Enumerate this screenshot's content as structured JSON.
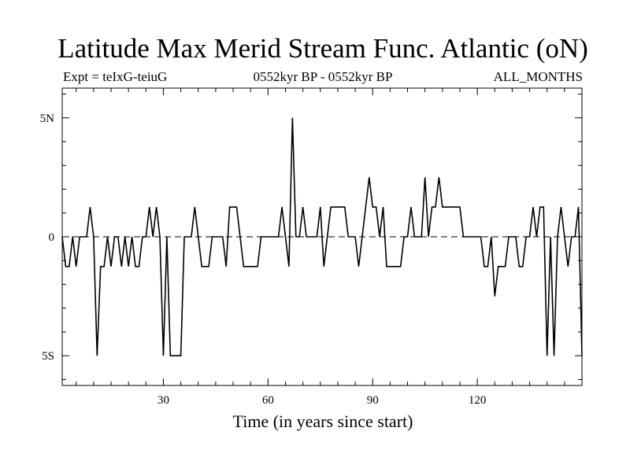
{
  "chart_data": {
    "type": "line",
    "title": "Latitude Max Merid Stream Func. Atlantic (oN)",
    "subtitle_left": "Expt = teIxG-teiuG",
    "subtitle_center": "0552kyr BP - 0552kyr BP",
    "subtitle_right": "ALL_MONTHS",
    "xlabel": "Time (in years since start)",
    "ylabel": "",
    "xlim": [
      1,
      150
    ],
    "ylim": [
      -6.25,
      6.25
    ],
    "x_ticks": [
      30,
      60,
      90,
      120
    ],
    "y_ticks": [
      -5,
      0,
      5
    ],
    "y_tick_labels": [
      "5S",
      "0",
      "5N"
    ],
    "zero_line": "dashed",
    "grid": false,
    "x": [
      1,
      2,
      3,
      4,
      5,
      6,
      7,
      8,
      9,
      10,
      11,
      12,
      13,
      14,
      15,
      16,
      17,
      18,
      19,
      20,
      21,
      22,
      23,
      24,
      25,
      26,
      27,
      28,
      29,
      30,
      31,
      32,
      33,
      34,
      35,
      36,
      37,
      38,
      39,
      40,
      41,
      42,
      43,
      44,
      45,
      46,
      47,
      48,
      49,
      50,
      51,
      52,
      53,
      54,
      55,
      56,
      57,
      58,
      59,
      60,
      61,
      62,
      63,
      64,
      65,
      66,
      67,
      68,
      69,
      70,
      71,
      72,
      73,
      74,
      75,
      76,
      77,
      78,
      79,
      80,
      81,
      82,
      83,
      84,
      85,
      86,
      87,
      88,
      89,
      90,
      91,
      92,
      93,
      94,
      95,
      96,
      97,
      98,
      99,
      100,
      101,
      102,
      103,
      104,
      105,
      106,
      107,
      108,
      109,
      110,
      111,
      112,
      113,
      114,
      115,
      116,
      117,
      118,
      119,
      120,
      121,
      122,
      123,
      124,
      125,
      126,
      127,
      128,
      129,
      130,
      131,
      132,
      133,
      134,
      135,
      136,
      137,
      138,
      139,
      140,
      141,
      142,
      143,
      144,
      145,
      146,
      147,
      148,
      149,
      150
    ],
    "series": [
      {
        "values": [
          0,
          -1.25,
          -1.25,
          0,
          -1.25,
          0,
          0,
          0,
          1.25,
          0,
          -5,
          -1.25,
          -1.25,
          0,
          -1.25,
          0,
          0,
          -1.25,
          0,
          -1.25,
          0,
          -1.25,
          -1.25,
          0,
          0,
          1.25,
          0,
          1.25,
          0,
          -5,
          0,
          -5,
          -5,
          -5,
          -5,
          0,
          0,
          0,
          1.25,
          0,
          -1.25,
          -1.25,
          -1.25,
          0,
          0,
          0,
          0,
          -1.25,
          1.25,
          1.25,
          1.25,
          0,
          -1.25,
          -1.25,
          -1.25,
          -1.25,
          -1.25,
          0,
          0,
          0,
          0,
          0,
          0,
          1.25,
          0,
          -1.25,
          5,
          0,
          0,
          1.25,
          0,
          0,
          0,
          0,
          1.25,
          -1.25,
          0,
          1.25,
          1.25,
          1.25,
          1.25,
          1.25,
          0,
          0,
          0,
          -1.25,
          0,
          1.25,
          2.5,
          1.25,
          1.25,
          0,
          1.25,
          -1.25,
          -1.25,
          -1.25,
          -1.25,
          -1.25,
          0,
          0,
          1.25,
          0,
          0,
          0,
          2.5,
          0,
          1.25,
          1.25,
          2.5,
          1.25,
          1.25,
          1.25,
          1.25,
          1.25,
          1.25,
          0,
          0,
          0,
          0,
          0,
          0,
          -1.25,
          -1.25,
          0,
          -2.5,
          -1.25,
          -1.25,
          -1.25,
          0,
          0,
          0,
          -1.25,
          -1.25,
          0,
          0,
          1.25,
          0,
          1.25,
          1.25,
          -5,
          0,
          -5,
          0,
          1.25,
          0,
          -1.25,
          0,
          0,
          1.25,
          -5
        ]
      }
    ]
  }
}
